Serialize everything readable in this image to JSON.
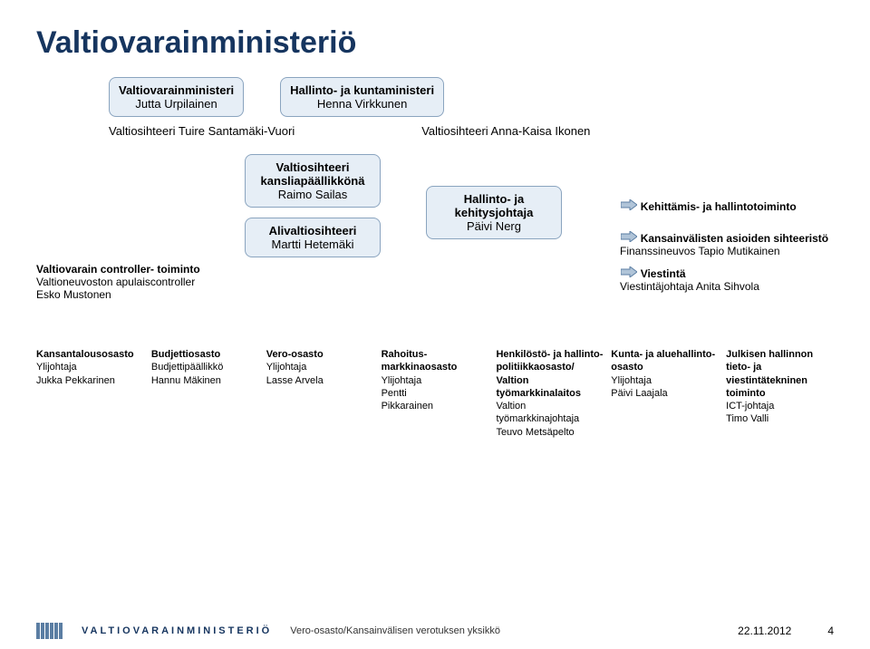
{
  "colors": {
    "title": "#16355f",
    "box_bg": "#e6eef6",
    "box_border": "#8aa4bf",
    "arrow_fill": "#b0c4d8",
    "arrow_stroke": "#5b7ea3",
    "stripe": "#5b7ea3",
    "text": "#000000",
    "background": "#ffffff"
  },
  "title": "Valtiovarainministeriö",
  "top_boxes": {
    "minister1": {
      "title": "Valtiovarainministeri",
      "name": "Jutta Urpilainen"
    },
    "minister2": {
      "title": "Hallinto- ja kuntaministeri",
      "name": "Henna Virkkunen"
    }
  },
  "secretaries": {
    "left": "Valtiosihteeri Tuire Santamäki-Vuori",
    "right": "Valtiosihteeri Anna-Kaisa Ikonen"
  },
  "mid": {
    "kanslia": {
      "l1": "Valtiosihteeri",
      "l2": "kansliapäällikkönä",
      "l3": "Raimo Sailas"
    },
    "aliv": {
      "l1": "Alivaltiosihteeri",
      "l2": "Martti Hetemäki"
    },
    "hallinto": {
      "l1": "Hallinto- ja",
      "l2": "kehitysjohtaja",
      "l3": "Päivi Nerg"
    },
    "controller": {
      "l1": "Valtiovarain controller- toiminto",
      "l2": "Valtioneuvoston apulaiscontroller",
      "l3": "Esko Mustonen"
    },
    "side": {
      "item1": "Kehittämis- ja hallintotoiminto",
      "item2_b": "Kansainvälisten asioiden sihteeristö",
      "item2_s": "Finanssineuvos Tapio Mutikainen",
      "item3_b": "Viestintä",
      "item3_s": "Viestintäjohtaja Anita Sihvola"
    }
  },
  "departments": [
    {
      "hd": "Kansantalousosasto",
      "lines": [
        "Ylijohtaja",
        "Jukka Pekkarinen"
      ]
    },
    {
      "hd": "Budjettiosasto",
      "lines": [
        "Budjettipäällikkö",
        "Hannu Mäkinen"
      ]
    },
    {
      "hd": "Vero-osasto",
      "lines": [
        "Ylijohtaja",
        "Lasse Arvela"
      ]
    },
    {
      "hd": "Rahoitus-markkinaosasto",
      "lines": [
        "Ylijohtaja",
        "Pentti",
        "Pikkarainen"
      ]
    },
    {
      "hd": "Henkilöstö- ja hallinto-politiikkaosasto/",
      "lines": [
        "Valtion työmarkkinalaitos",
        "Valtion",
        "työmarkkinajohtaja",
        "Teuvo Metsäpelto"
      ]
    },
    {
      "hd": "Kunta- ja aluehallinto-osasto",
      "lines": [
        "Ylijohtaja",
        "Päivi Laajala"
      ]
    },
    {
      "hd": "Julkisen hallinnon tieto- ja viestintätekninen toiminto",
      "lines": [
        "ICT-johtaja",
        "Timo Valli"
      ]
    }
  ],
  "footer": {
    "brand": "VALTIOVARAINMINISTERIÖ",
    "source": "Vero-osasto/Kansainvälisen verotuksen yksikkö",
    "date": "22.11.2012",
    "page": "4"
  }
}
